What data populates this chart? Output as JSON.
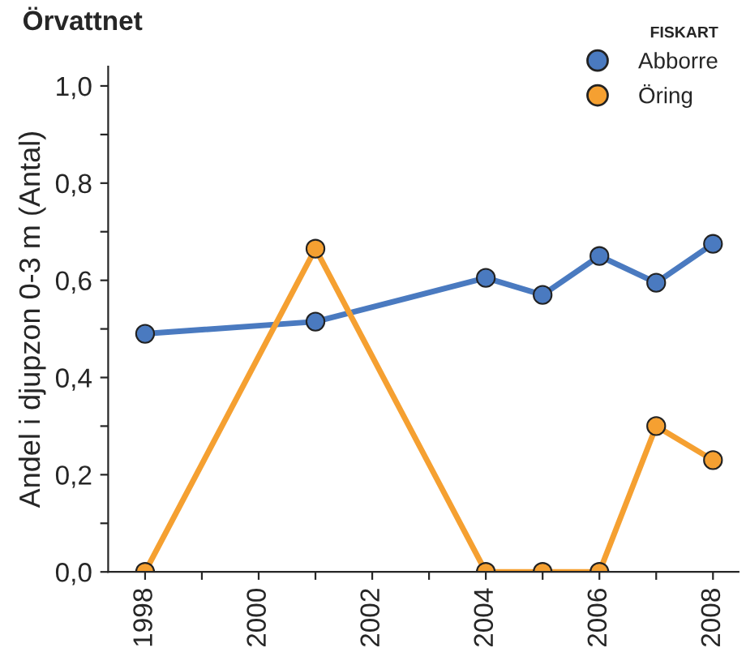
{
  "chart_data": {
    "type": "line",
    "title": "Örvattnet",
    "ylabel": "Andel i djupzon 0-3 m (Antal)",
    "legend_title": "FISKART",
    "x": [
      1998,
      2001,
      2004,
      2005,
      2006,
      2007,
      2008
    ],
    "series": [
      {
        "name": "Abborre",
        "color": "#4a7ac0",
        "values": [
          0.49,
          0.515,
          0.605,
          0.57,
          0.65,
          0.595,
          0.675
        ]
      },
      {
        "name": "Öring",
        "color": "#f5a031",
        "values": [
          0,
          0.665,
          0,
          0,
          0,
          0.3,
          0.23
        ]
      }
    ],
    "xlim": [
      1997.35,
      2008.45
    ],
    "xticks": [
      1998,
      {
        "value": 1999,
        "label": null
      },
      2000,
      {
        "value": 2001,
        "label": null
      },
      2002,
      {
        "value": 2003,
        "label": null
      },
      2004,
      {
        "value": 2005,
        "label": null
      },
      2006,
      {
        "value": 2007,
        "label": null
      },
      2008
    ],
    "ylim": [
      0,
      1.04
    ],
    "yticks": [
      {
        "value": 0,
        "label": "0,0"
      },
      {
        "value": 0.1,
        "label": null
      },
      {
        "value": 0.2,
        "label": "0,2"
      },
      {
        "value": 0.3,
        "label": null
      },
      {
        "value": 0.4,
        "label": "0,4"
      },
      {
        "value": 0.5,
        "label": null
      },
      {
        "value": 0.6,
        "label": "0,6"
      },
      {
        "value": 0.7,
        "label": null
      },
      {
        "value": 0.8,
        "label": "0,8"
      },
      {
        "value": 0.9,
        "label": null
      },
      {
        "value": 1.0,
        "label": "1,0"
      }
    ],
    "legend": "top right",
    "marker": "circle",
    "line_style": "solid",
    "grid": false
  }
}
